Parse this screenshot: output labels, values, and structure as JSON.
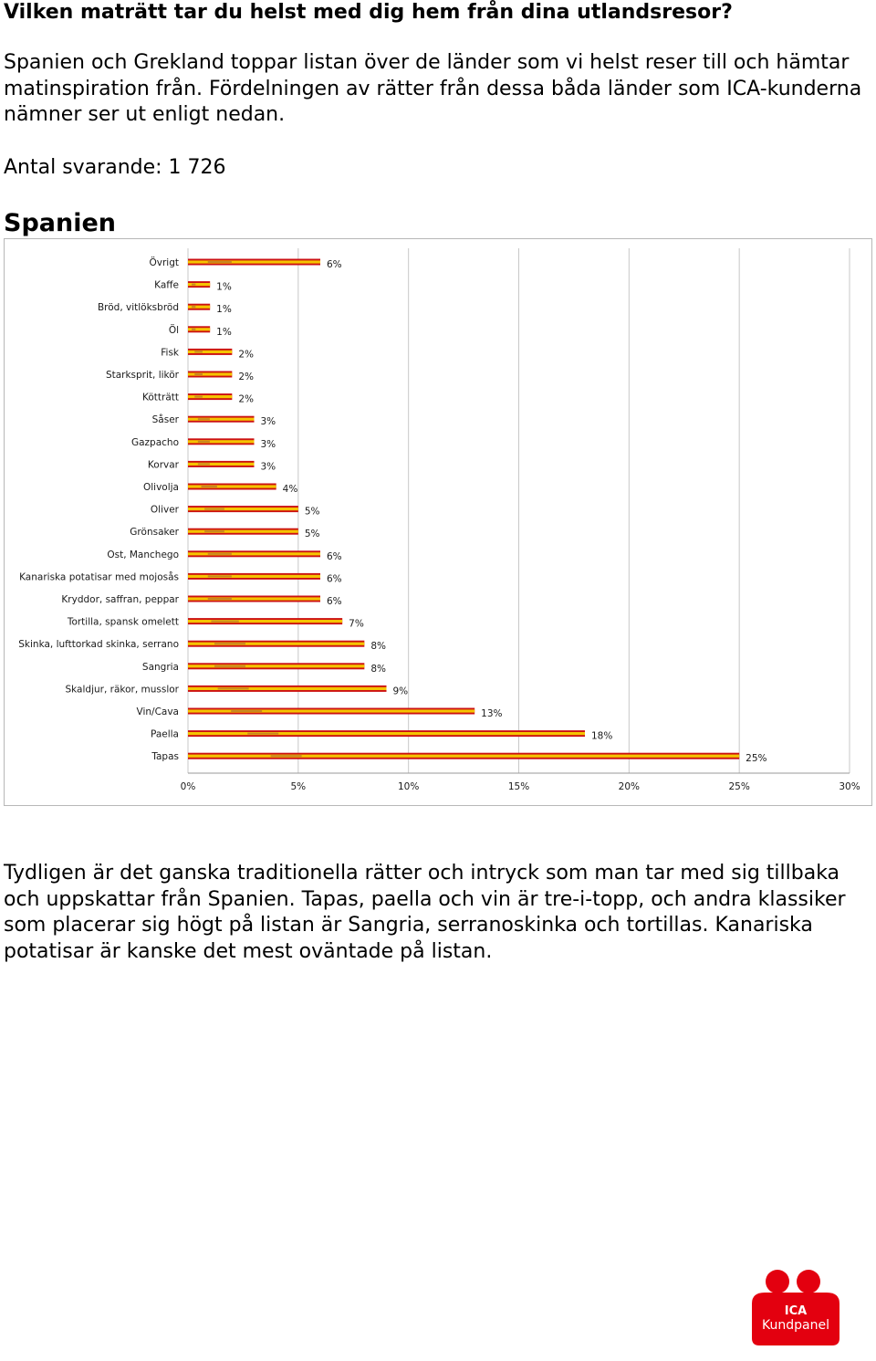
{
  "heading": "Vilken maträtt tar du helst med dig hem från dina utlandsresor?",
  "intro": "Spanien och Grekland toppar listan över de länder som vi helst reser till och hämtar matinspiration från. Fördelningen av rätter från dessa båda länder som ICA-kunderna nämner ser ut enligt nedan.",
  "respondents": "Antal svarande: 1 726",
  "country_title": "Spanien",
  "conclusion": "Tydligen är det ganska traditionella rätter och intryck som man tar med sig tillbaka och uppskattar från Spanien. Tapas, paella och vin är tre-i-topp, och andra klassiker som placerar sig högt på listan är Sangria, serranoskinka och tortillas. Kanariska potatisar är kanske det mest oväntade på listan.",
  "logo": {
    "line1": "ICA",
    "line2": "Kundpanel"
  },
  "colors": {
    "bar_red": "#cc1111",
    "bar_yellow": "#f5c400",
    "logo_red": "#e3000f",
    "grid": "#c8c8c8"
  },
  "chart_data": {
    "type": "bar",
    "orientation": "horizontal",
    "title": "Spanien",
    "xlabel": "",
    "ylabel": "",
    "xlim": [
      0,
      30
    ],
    "grid": true,
    "x_ticks": [
      "0%",
      "5%",
      "10%",
      "15%",
      "20%",
      "25%",
      "30%"
    ],
    "categories": [
      "Övrigt",
      "Kaffe",
      "Bröd, vitlöksbröd",
      "Öl",
      "Fisk",
      "Starksprit, likör",
      "Kötträtt",
      "Såser",
      "Gazpacho",
      "Korvar",
      "Olivolja",
      "Oliver",
      "Grönsaker",
      "Ost, Manchego",
      "Kanariska potatisar med mojosås",
      "Kryddor, saffran, peppar",
      "Tortilla, spansk omelett",
      "Skinka, lufttorkad skinka, serrano",
      "Sangria",
      "Skaldjur, räkor, musslor",
      "Vin/Cava",
      "Paella",
      "Tapas"
    ],
    "values": [
      6,
      1,
      1,
      1,
      2,
      2,
      2,
      3,
      3,
      3,
      4,
      5,
      5,
      6,
      6,
      6,
      7,
      8,
      8,
      9,
      13,
      18,
      25
    ],
    "value_labels": [
      "6%",
      "1%",
      "1%",
      "1%",
      "2%",
      "2%",
      "2%",
      "3%",
      "3%",
      "3%",
      "4%",
      "5%",
      "5%",
      "6%",
      "6%",
      "6%",
      "7%",
      "8%",
      "8%",
      "9%",
      "13%",
      "18%",
      "25%"
    ]
  }
}
